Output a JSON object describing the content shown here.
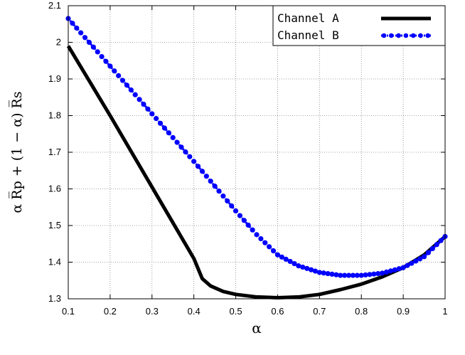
{
  "chart_data": {
    "type": "line",
    "xlabel": "α",
    "ylabel": "α R̅p + (1 − α) R̅s",
    "xlim": [
      0.1,
      1.0
    ],
    "ylim": [
      1.3,
      2.1
    ],
    "xticks": [
      "0.1",
      "0.2",
      "0.3",
      "0.4",
      "0.5",
      "0.6",
      "0.7",
      "0.8",
      "0.9",
      "1"
    ],
    "yticks": [
      "1.3",
      "1.4",
      "1.5",
      "1.6",
      "1.7",
      "1.8",
      "1.9",
      "2",
      "2.1"
    ],
    "grid": true,
    "legend_position": "top-right",
    "series": [
      {
        "name": "Channel A",
        "color": "#000000",
        "style": "solid-thick",
        "x": [
          0.1,
          0.2,
          0.3,
          0.4,
          0.42,
          0.44,
          0.47,
          0.5,
          0.55,
          0.6,
          0.65,
          0.7,
          0.75,
          0.8,
          0.85,
          0.9,
          0.95,
          1.0
        ],
        "y": [
          1.99,
          1.8,
          1.605,
          1.41,
          1.355,
          1.335,
          1.32,
          1.312,
          1.305,
          1.303,
          1.305,
          1.312,
          1.325,
          1.34,
          1.36,
          1.385,
          1.42,
          1.47
        ]
      },
      {
        "name": "Channel B",
        "color": "#0000ff",
        "style": "dotted-with-points",
        "x": [
          0.1,
          0.2,
          0.3,
          0.4,
          0.5,
          0.55,
          0.6,
          0.65,
          0.7,
          0.75,
          0.8,
          0.85,
          0.9,
          0.95,
          1.0
        ],
        "y": [
          2.065,
          1.935,
          1.805,
          1.675,
          1.54,
          1.475,
          1.42,
          1.39,
          1.372,
          1.364,
          1.364,
          1.37,
          1.385,
          1.415,
          1.47
        ]
      }
    ]
  }
}
